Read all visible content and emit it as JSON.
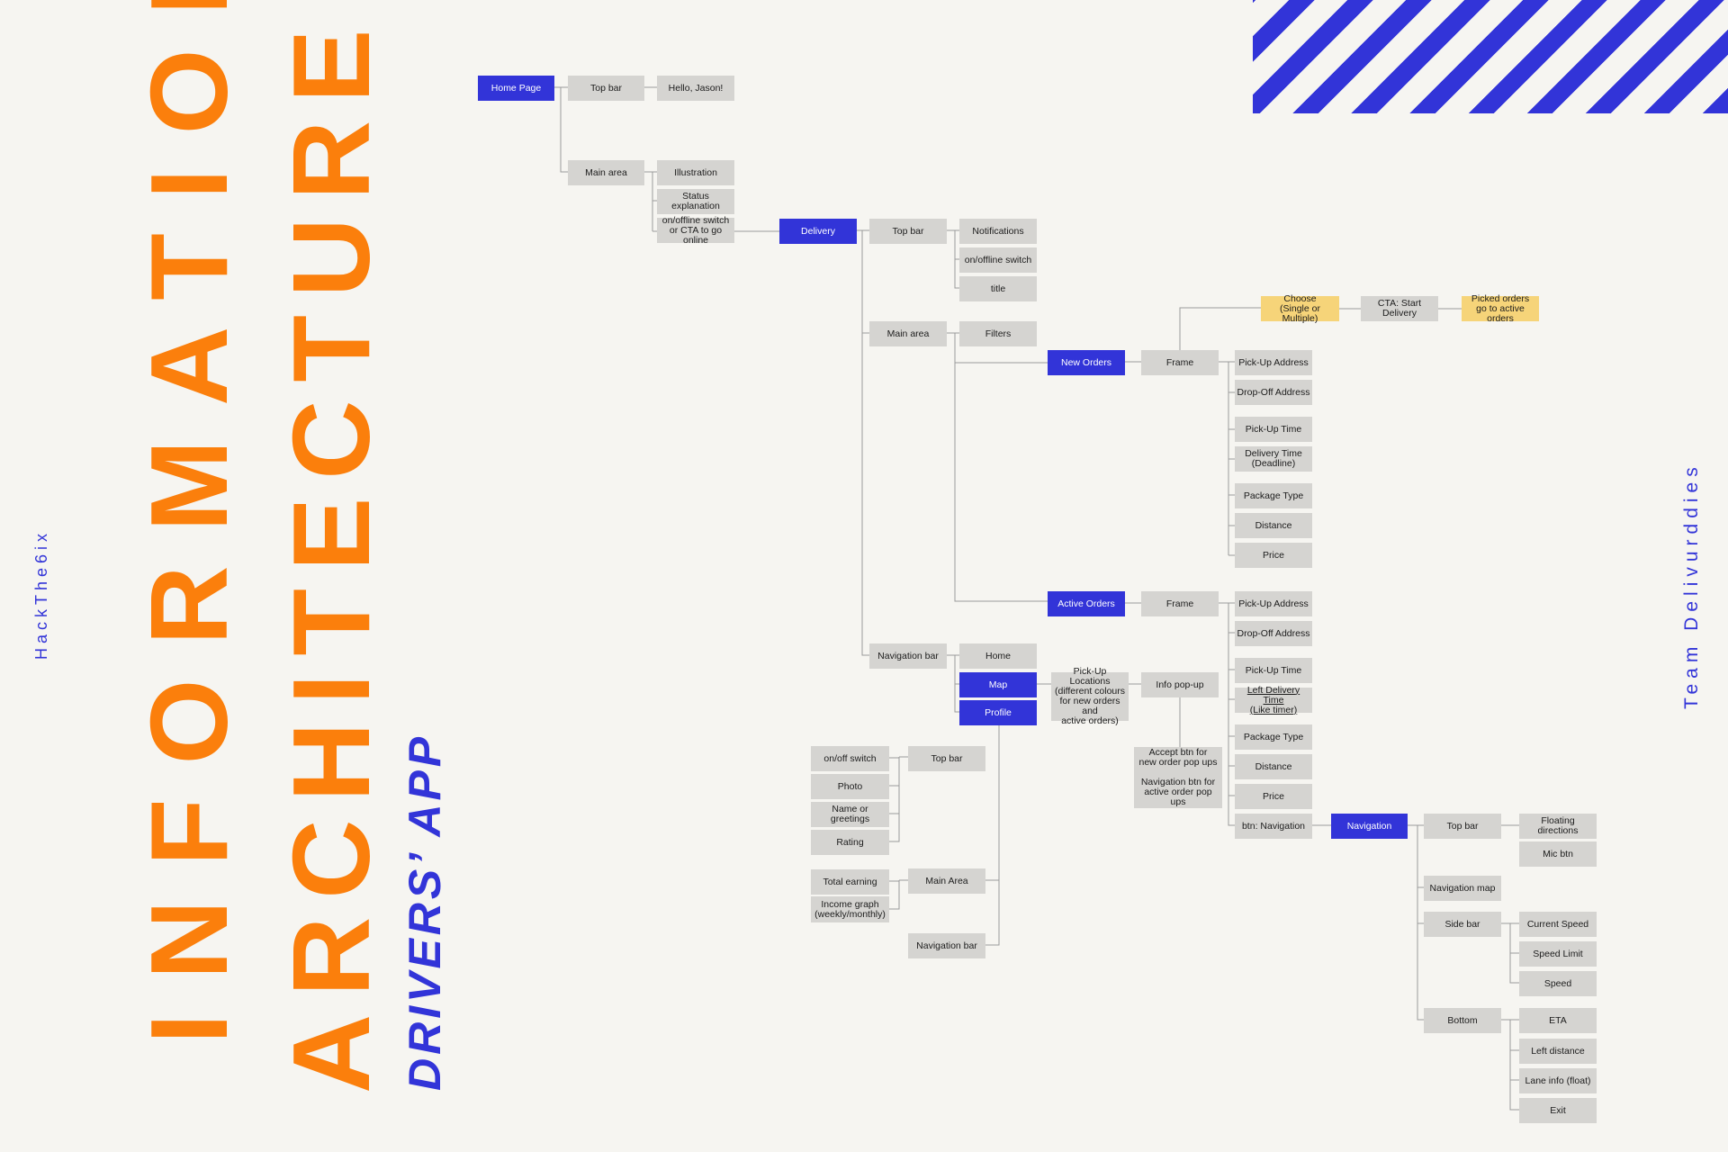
{
  "title_line1": "INFORMATION",
  "title_line2": "ARCHITECTURE",
  "subtitle": "DRIVERS’ APP",
  "hackathon": "HackThe6ix",
  "team": "Team Delivurddies",
  "colors": {
    "background": "#f6f5f1",
    "title_orange": "#fb7f0c",
    "accent_blue": "#3234d8",
    "node_gray": "#d5d4d1",
    "node_yellow": "#f6d479",
    "connector": "#9a9a9a"
  },
  "nodes": {
    "home_page": "Home Page",
    "home_top_bar": "Top bar",
    "hello_jason": "Hello, Jason!",
    "home_main_area": "Main area",
    "illustration": "Illustration",
    "status_explanation": "Status explanation",
    "online_switch_cta": "on/offline switch\nor CTA to go online",
    "delivery": "Delivery",
    "delivery_top_bar": "Top bar",
    "notifications": "Notifications",
    "delivery_onoffline_switch": "on/offline switch",
    "delivery_title": "title",
    "delivery_main_area": "Main area",
    "filters": "Filters",
    "new_orders": "New Orders",
    "new_orders_frame": "Frame",
    "choose": "Choose\n(Single or Multiple)",
    "cta_start_delivery": "CTA: Start Delivery",
    "picked_orders": "Picked orders\ngo to active orders",
    "new_pickup_address": "Pick-Up Address",
    "new_dropoff_address": "Drop-Off Address",
    "new_pickup_time": "Pick-Up Time",
    "new_delivery_time": "Delivery Time\n(Deadline)",
    "new_package_type": "Package Type",
    "new_distance": "Distance",
    "new_price": "Price",
    "active_orders": "Active Orders",
    "active_orders_frame": "Frame",
    "active_pickup_address": "Pick-Up Address",
    "active_dropoff_address": "Drop-Off Address",
    "active_pickup_time": "Pick-Up Time",
    "active_left_delivery_time": "Left Delivery Time\n(Like timer)",
    "active_package_type": "Package Type",
    "active_distance": "Distance",
    "active_price": "Price",
    "btn_navigation": "btn: Navigation",
    "navigation_bar": "Navigation bar",
    "nav_home": "Home",
    "nav_map": "Map",
    "nav_profile": "Profile",
    "pickup_locations": "Pick-Up Locations\n(different colours\nfor new orders and\nactive orders)",
    "info_popup": "Info pop-up",
    "accept_btns": "Accept btn for\nnew order pop ups\n\nNavigation btn for\nactive order pop ups",
    "profile_top_bar": "Top bar",
    "profile_onoff_switch": "on/off switch",
    "photo": "Photo",
    "name_greetings": "Name or greetings",
    "rating": "Rating",
    "profile_main_area": "Main Area",
    "total_earning": "Total earning",
    "income_graph": "Income graph\n(weekly/monthly)",
    "profile_navigation_bar": "Navigation bar",
    "navigation": "Navigation",
    "nav_top_bar": "Top bar",
    "floating_directions": "Floating directions",
    "mic_btn": "Mic btn",
    "navigation_map": "Navigation map",
    "side_bar": "Side bar",
    "current_speed": "Current Speed",
    "speed_limit": "Speed Limit",
    "speed": "Speed",
    "bottom": "Bottom",
    "eta": "ETA",
    "left_distance": "Left distance",
    "lane_info": "Lane info (float)",
    "exit": "Exit"
  }
}
